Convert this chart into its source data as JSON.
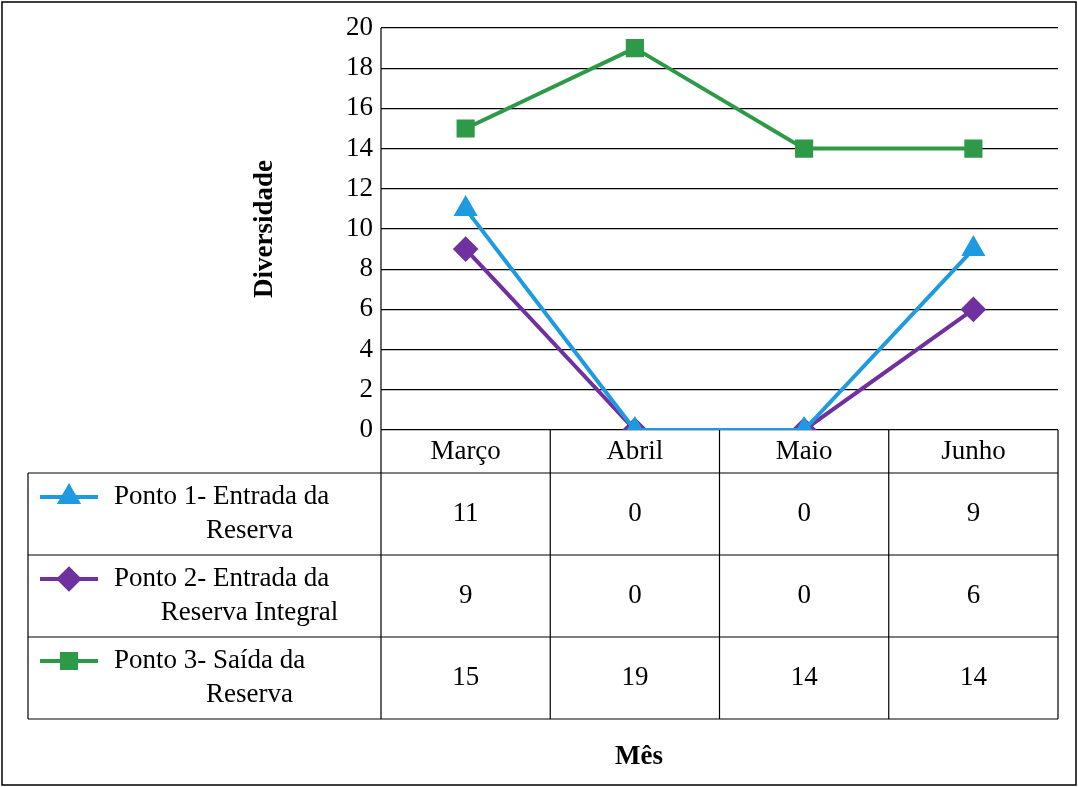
{
  "chart_data": {
    "type": "line",
    "annotations": [
      "Mês"
    ],
    "ylabel": "Diversidade",
    "categories": [
      "Março",
      "Abril",
      "Maio",
      "Junho"
    ],
    "series": [
      {
        "name": "Ponto 1- Entrada da Reserva",
        "color": "#1e9be0",
        "marker": "triangle",
        "values": [
          11,
          0,
          0,
          9
        ]
      },
      {
        "name": "Ponto 2- Entrada da Reserva Integral",
        "color": "#7030a0",
        "marker": "diamond",
        "values": [
          9,
          0,
          0,
          6
        ]
      },
      {
        "name": "Ponto 3- Saída da Reserva",
        "color": "#2e9a48",
        "marker": "square",
        "values": [
          15,
          19,
          14,
          14
        ]
      }
    ],
    "ylim": [
      0,
      20
    ],
    "yticks": [
      0,
      2,
      4,
      6,
      8,
      10,
      12,
      14,
      16,
      18,
      20
    ],
    "grid": "y",
    "legend": "bottom",
    "data_labels": true
  }
}
